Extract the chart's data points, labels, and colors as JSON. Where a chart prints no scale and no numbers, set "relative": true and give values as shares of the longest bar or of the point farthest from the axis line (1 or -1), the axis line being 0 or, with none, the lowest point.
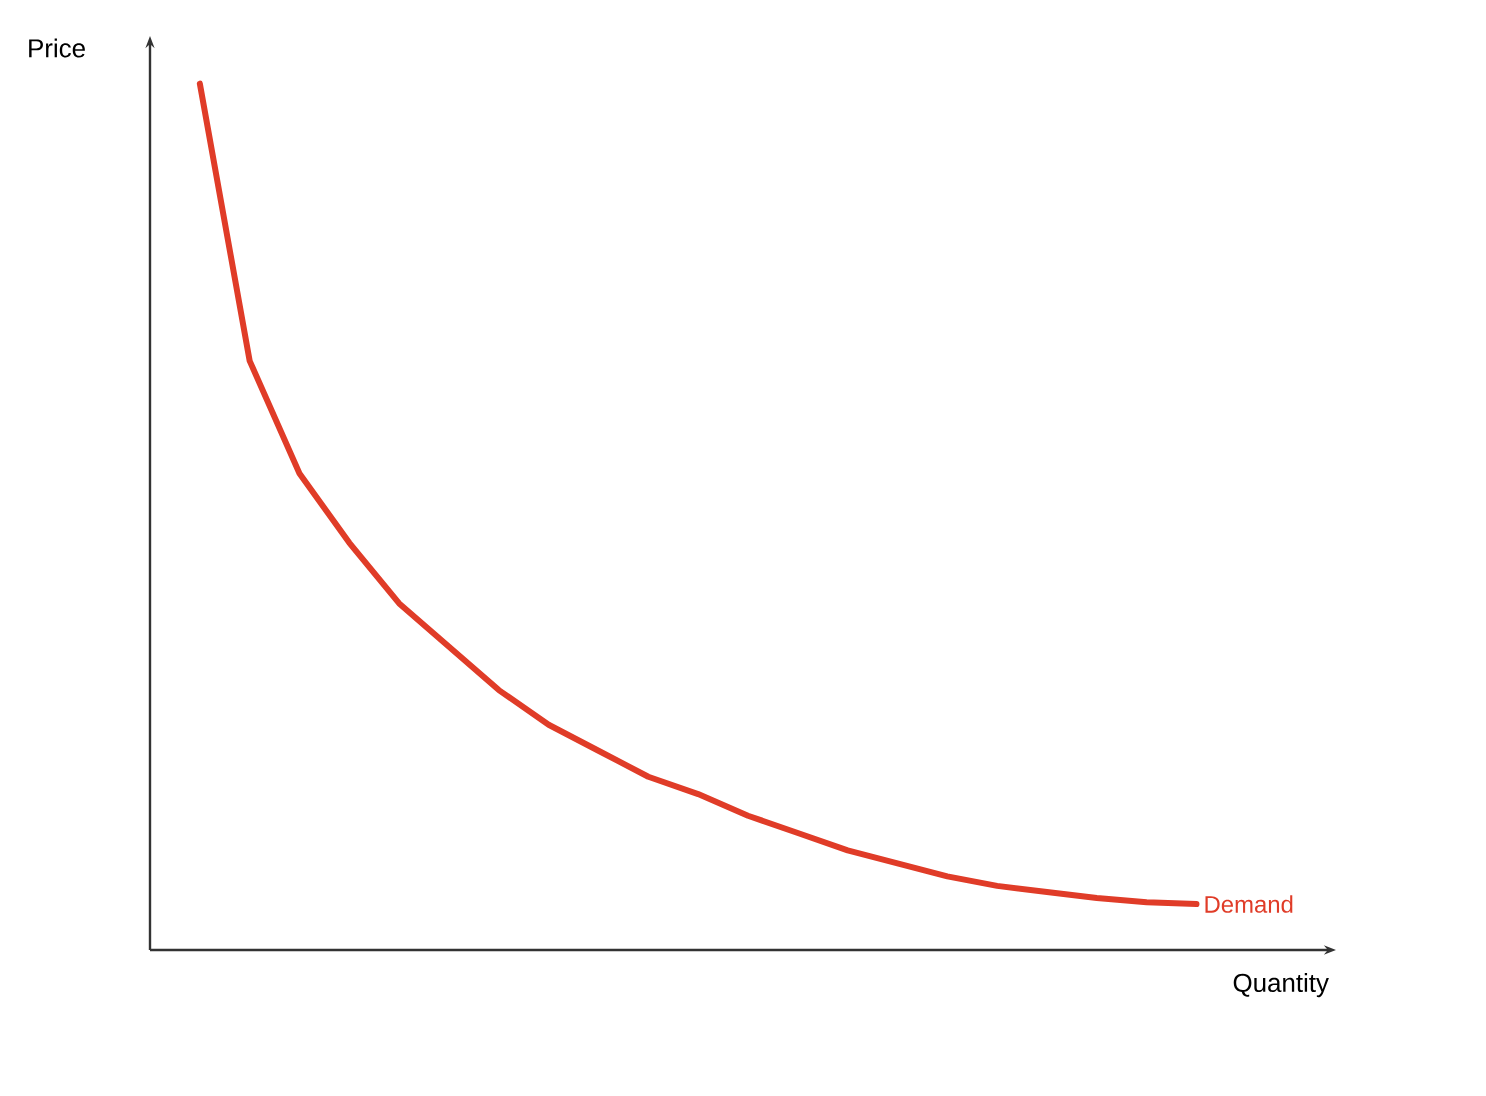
{
  "chart_data": {
    "type": "line",
    "xlabel": "Quantity",
    "ylabel": "Price",
    "relative": true,
    "categories": [
      null,
      null,
      null,
      null,
      null,
      null,
      null,
      null,
      null,
      null,
      null,
      null,
      null,
      null,
      null,
      null,
      null,
      null,
      null,
      null,
      null
    ],
    "series": [
      {
        "name": "Demand",
        "color": "#e03c28",
        "values": [
          1.0,
          0.68,
          0.55,
          0.47,
          0.4,
          0.35,
          0.3,
          0.26,
          0.23,
          0.2,
          0.18,
          0.155,
          0.135,
          0.115,
          0.1,
          0.085,
          0.074,
          0.067,
          0.06,
          0.055,
          0.053
        ]
      }
    ]
  }
}
